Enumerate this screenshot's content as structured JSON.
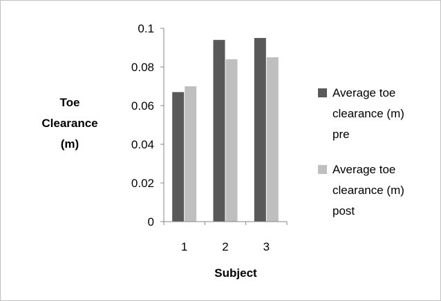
{
  "chart_data": {
    "type": "bar",
    "categories": [
      "1",
      "2",
      "3"
    ],
    "series": [
      {
        "name": "Average toe clearance (m) pre",
        "values": [
          0.067,
          0.094,
          0.095
        ],
        "color": "#595959"
      },
      {
        "name": "Average toe clearance (m) post",
        "values": [
          0.07,
          0.084,
          0.085
        ],
        "color": "#bfbfbf"
      }
    ],
    "xlabel": "Subject",
    "ylabel": "Toe Clearance (m)",
    "ylim": [
      0,
      0.1
    ],
    "yticks": [
      "0",
      "0.02",
      "0.04",
      "0.06",
      "0.08",
      "0.1"
    ],
    "grid": false,
    "legend_position": "right"
  }
}
